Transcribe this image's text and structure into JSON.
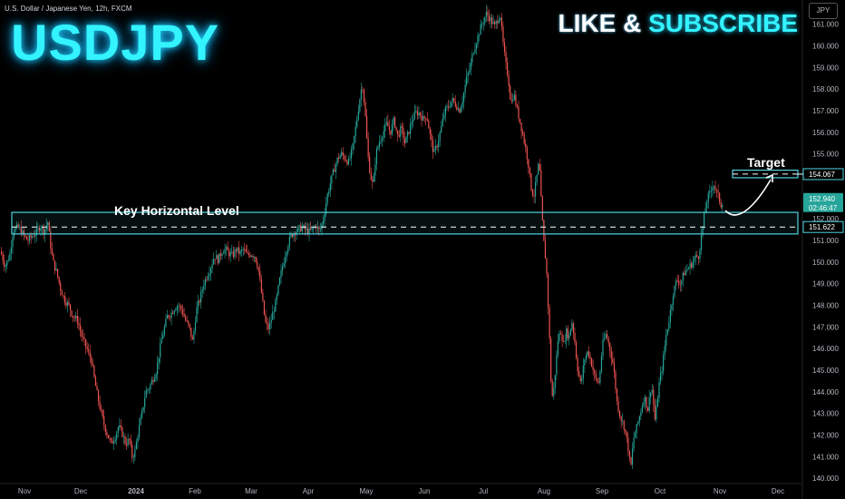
{
  "header": {
    "symbol": "U.S. Dollar / Japanese Yen, 12h, FXCM",
    "title": "USDJPY",
    "cta_prefix": "LIKE &",
    "cta_highlight": "SUBSCRIBE",
    "currency": "JPY"
  },
  "annotations": {
    "key_level": "Key Horizontal Level",
    "target": "Target"
  },
  "price_labels": {
    "target": "154.067",
    "current": "152.940",
    "countdown": "02:46:47",
    "key_level": "151.622"
  },
  "colors": {
    "up": "#26a69a",
    "down": "#ef5350",
    "accent": "#33f3ff",
    "zone": "#4fd2df"
  },
  "chart_data": {
    "type": "candlestick",
    "timeframe": "12h",
    "y_range": [
      139.8,
      161.7
    ],
    "y_ticks": [
      140,
      141,
      142,
      143,
      144,
      145,
      146,
      147,
      148,
      149,
      150,
      151,
      152,
      153,
      154,
      155,
      156,
      157,
      158,
      159,
      160,
      161
    ],
    "x_labels": [
      "Nov",
      "Dec",
      "2024",
      "Feb",
      "Mar",
      "Apr",
      "May",
      "Jun",
      "Jul",
      "Aug",
      "Sep",
      "Oct",
      "Nov",
      "Dec"
    ],
    "key_zone": {
      "low": 151.3,
      "high": 152.3,
      "level": 151.622
    },
    "target_zone": {
      "low": 153.9,
      "high": 154.25,
      "level": 154.067
    },
    "close_path": [
      [
        0,
        150.5
      ],
      [
        5,
        149.8
      ],
      [
        10,
        150.3
      ],
      [
        14,
        151.5
      ],
      [
        20,
        151.6
      ],
      [
        26,
        151.2
      ],
      [
        30,
        151.0
      ],
      [
        35,
        151.2
      ],
      [
        40,
        151.4
      ],
      [
        44,
        151.7
      ],
      [
        48,
        151.4
      ],
      [
        52,
        151.9
      ],
      [
        55,
        150.8
      ],
      [
        58,
        150.0
      ],
      [
        62,
        149.5
      ],
      [
        66,
        148.8
      ],
      [
        70,
        148.3
      ],
      [
        75,
        148.0
      ],
      [
        80,
        147.5
      ],
      [
        85,
        147.3
      ],
      [
        90,
        146.5
      ],
      [
        95,
        146.0
      ],
      [
        100,
        145.5
      ],
      [
        103,
        144.7
      ],
      [
        106,
        144.0
      ],
      [
        110,
        143.2
      ],
      [
        114,
        142.5
      ],
      [
        118,
        142.0
      ],
      [
        122,
        141.6
      ],
      [
        126,
        141.9
      ],
      [
        130,
        142.4
      ],
      [
        134,
        142.1
      ],
      [
        138,
        141.6
      ],
      [
        142,
        141.8
      ],
      [
        145,
        141.0
      ],
      [
        148,
        141.2
      ],
      [
        152,
        142.2
      ],
      [
        156,
        143.0
      ],
      [
        160,
        144.0
      ],
      [
        164,
        144.2
      ],
      [
        168,
        144.6
      ],
      [
        172,
        145.0
      ],
      [
        175,
        145.8
      ],
      [
        178,
        146.5
      ],
      [
        181,
        147.0
      ],
      [
        184,
        147.5
      ],
      [
        188,
        147.6
      ],
      [
        192,
        147.9
      ],
      [
        196,
        148.0
      ],
      [
        200,
        147.8
      ],
      [
        204,
        147.3
      ],
      [
        208,
        147.0
      ],
      [
        212,
        146.3
      ],
      [
        216,
        147.8
      ],
      [
        220,
        148.3
      ],
      [
        224,
        149.0
      ],
      [
        228,
        149.4
      ],
      [
        232,
        149.8
      ],
      [
        236,
        150.3
      ],
      [
        240,
        150.1
      ],
      [
        244,
        150.5
      ],
      [
        248,
        150.6
      ],
      [
        252,
        150.4
      ],
      [
        256,
        150.3
      ],
      [
        260,
        150.6
      ],
      [
        264,
        150.4
      ],
      [
        268,
        150.6
      ],
      [
        272,
        150.3
      ],
      [
        276,
        150.4
      ],
      [
        280,
        150.3
      ],
      [
        284,
        149.8
      ],
      [
        288,
        148.5
      ],
      [
        292,
        147.2
      ],
      [
        296,
        146.9
      ],
      [
        300,
        147.6
      ],
      [
        304,
        148.2
      ],
      [
        308,
        149.2
      ],
      [
        312,
        150.0
      ],
      [
        316,
        150.7
      ],
      [
        320,
        151.2
      ],
      [
        324,
        151.4
      ],
      [
        328,
        151.5
      ],
      [
        332,
        151.6
      ],
      [
        336,
        151.5
      ],
      [
        340,
        151.4
      ],
      [
        344,
        151.5
      ],
      [
        348,
        151.7
      ],
      [
        352,
        151.4
      ],
      [
        356,
        152.0
      ],
      [
        360,
        153.0
      ],
      [
        364,
        153.7
      ],
      [
        368,
        154.3
      ],
      [
        372,
        154.8
      ],
      [
        376,
        155.0
      ],
      [
        380,
        154.8
      ],
      [
        384,
        154.6
      ],
      [
        388,
        155.2
      ],
      [
        392,
        156.3
      ],
      [
        396,
        157.5
      ],
      [
        399,
        158.3
      ],
      [
        402,
        157.0
      ],
      [
        405,
        155.0
      ],
      [
        408,
        154.0
      ],
      [
        411,
        153.5
      ],
      [
        414,
        155.0
      ],
      [
        418,
        155.6
      ],
      [
        422,
        156.0
      ],
      [
        426,
        156.4
      ],
      [
        430,
        156.0
      ],
      [
        434,
        156.6
      ],
      [
        438,
        155.8
      ],
      [
        442,
        156.2
      ],
      [
        446,
        155.5
      ],
      [
        450,
        156.0
      ],
      [
        454,
        156.6
      ],
      [
        458,
        156.9
      ],
      [
        462,
        156.9
      ],
      [
        466,
        156.6
      ],
      [
        470,
        156.8
      ],
      [
        474,
        155.8
      ],
      [
        478,
        155.0
      ],
      [
        482,
        155.5
      ],
      [
        486,
        156.2
      ],
      [
        490,
        157.0
      ],
      [
        494,
        157.2
      ],
      [
        498,
        157.5
      ],
      [
        502,
        157.3
      ],
      [
        506,
        157.0
      ],
      [
        510,
        157.6
      ],
      [
        514,
        158.5
      ],
      [
        518,
        159.0
      ],
      [
        521,
        159.7
      ],
      [
        524,
        160.1
      ],
      [
        527,
        160.5
      ],
      [
        530,
        160.9
      ],
      [
        533,
        161.2
      ],
      [
        536,
        161.5
      ],
      [
        539,
        161.3
      ],
      [
        542,
        161.1
      ],
      [
        545,
        160.9
      ],
      [
        548,
        161.2
      ],
      [
        551,
        161.5
      ],
      [
        554,
        160.2
      ],
      [
        557,
        159.2
      ],
      [
        560,
        158.5
      ],
      [
        563,
        157.3
      ],
      [
        566,
        157.8
      ],
      [
        570,
        157.0
      ],
      [
        574,
        156.3
      ],
      [
        578,
        155.5
      ],
      [
        582,
        154.6
      ],
      [
        585,
        153.5
      ],
      [
        588,
        153.0
      ],
      [
        591,
        153.8
      ],
      [
        594,
        154.7
      ],
      [
        596,
        153.0
      ],
      [
        599,
        151.0
      ],
      [
        602,
        149.8
      ],
      [
        605,
        147.0
      ],
      [
        607,
        144.6
      ],
      [
        609,
        143.6
      ],
      [
        612,
        145.0
      ],
      [
        615,
        146.5
      ],
      [
        618,
        146.8
      ],
      [
        621,
        146.2
      ],
      [
        624,
        146.8
      ],
      [
        627,
        146.5
      ],
      [
        630,
        147.3
      ],
      [
        633,
        146.5
      ],
      [
        636,
        145.2
      ],
      [
        640,
        144.3
      ],
      [
        644,
        145.5
      ],
      [
        648,
        145.9
      ],
      [
        652,
        145.3
      ],
      [
        656,
        144.6
      ],
      [
        660,
        144.4
      ],
      [
        664,
        146.2
      ],
      [
        668,
        146.7
      ],
      [
        672,
        146.0
      ],
      [
        676,
        145.2
      ],
      [
        680,
        143.5
      ],
      [
        684,
        142.8
      ],
      [
        688,
        142.4
      ],
      [
        692,
        141.5
      ],
      [
        695,
        140.4
      ],
      [
        698,
        141.8
      ],
      [
        702,
        142.4
      ],
      [
        706,
        143.1
      ],
      [
        710,
        143.8
      ],
      [
        714,
        143.2
      ],
      [
        718,
        144.4
      ],
      [
        722,
        142.6
      ],
      [
        726,
        144.3
      ],
      [
        730,
        145.2
      ],
      [
        734,
        146.6
      ],
      [
        738,
        147.5
      ],
      [
        742,
        148.6
      ],
      [
        746,
        149.2
      ],
      [
        750,
        149.0
      ],
      [
        754,
        149.5
      ],
      [
        758,
        149.7
      ],
      [
        762,
        149.9
      ],
      [
        766,
        150.2
      ],
      [
        770,
        150.3
      ],
      [
        774,
        151.5
      ],
      [
        777,
        152.4
      ],
      [
        780,
        153.0
      ],
      [
        783,
        153.2
      ],
      [
        786,
        153.7
      ],
      [
        789,
        153.3
      ],
      [
        792,
        153.0
      ],
      [
        795,
        152.6
      ],
      [
        797,
        152.94
      ]
    ]
  }
}
